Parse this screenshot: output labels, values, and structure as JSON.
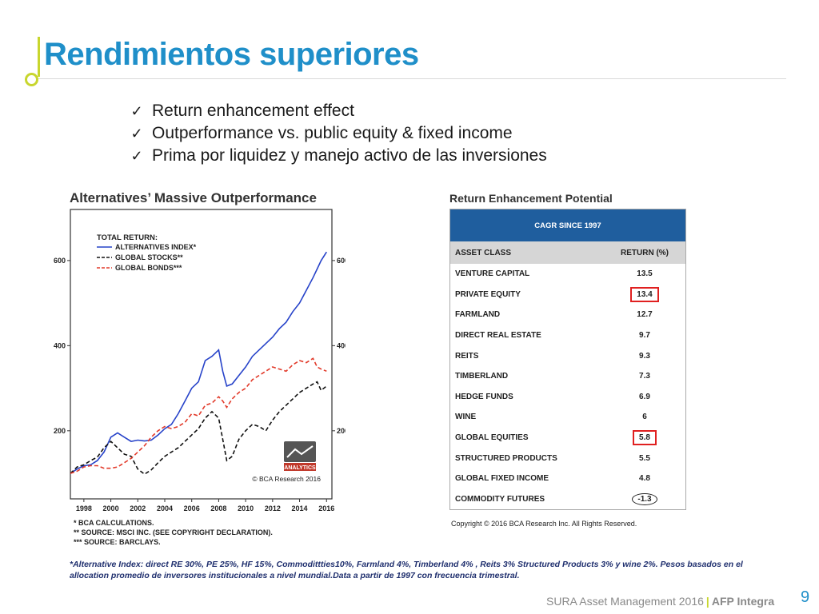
{
  "slide": {
    "title": "Rendimientos superiores",
    "bullets": [
      "Return enhancement effect",
      "Outperformance vs. public equity & fixed income",
      "Prima por liquidez y manejo activo de las inversiones"
    ],
    "note": "*Alternative Index: direct RE 30%, PE 25%, HF 15%, Commodittties10%, Farmland 4%, Timberland 4% , Reits 3%  Structured Products 3% y wine 2%. Pesos basados en el allocation promedio de inversores institucionales a nivel mundial.Data a partir de 1997 con frecuencia trimestral.",
    "footer_left": "SURA Asset Management 2016",
    "footer_sep": "|",
    "footer_brand": "AFP Integra",
    "page_number": "9"
  },
  "left_chart": {
    "title": "Alternatives’ Massive Outperformance",
    "logo_text": "ANALYTICS",
    "watermark": "© BCA Research 2016",
    "footnotes": [
      "* BCA CALCULATIONS.",
      "** SOURCE: MSCI INC. (SEE COPYRIGHT DECLARATION).",
      "*** SOURCE: BARCLAYS."
    ]
  },
  "chart_data": {
    "type": "line",
    "title": "Alternatives’ Massive Outperformance",
    "legend_title": "TOTAL RETURN:",
    "legend_position": "top-left",
    "x_ticks": [
      "1998",
      "2000",
      "2002",
      "2004",
      "2006",
      "2008",
      "2010",
      "2012",
      "2014",
      "2016"
    ],
    "y_ticks": [
      200,
      400,
      600
    ],
    "xlim": [
      1997,
      2016.4
    ],
    "ylim": [
      40,
      720
    ],
    "series": [
      {
        "name": "ALTERNATIVES INDEX*",
        "color": "#2743c9",
        "dash": "solid",
        "x": [
          1997,
          1997.5,
          1998,
          1998.5,
          1999,
          1999.5,
          2000,
          2000.5,
          2001,
          2001.5,
          2002,
          2002.5,
          2003,
          2003.5,
          2004,
          2004.5,
          2005,
          2005.5,
          2006,
          2006.5,
          2007,
          2007.5,
          2008,
          2008.3,
          2008.6,
          2009,
          2009.5,
          2010,
          2010.5,
          2011,
          2011.5,
          2012,
          2012.5,
          2013,
          2013.5,
          2014,
          2014.5,
          2015,
          2015.3,
          2015.6,
          2016
        ],
        "y": [
          100,
          110,
          118,
          120,
          130,
          150,
          185,
          195,
          185,
          175,
          178,
          176,
          178,
          190,
          205,
          215,
          240,
          270,
          300,
          315,
          365,
          375,
          390,
          340,
          305,
          310,
          330,
          350,
          375,
          390,
          405,
          420,
          440,
          455,
          480,
          500,
          530,
          560,
          580,
          600,
          620
        ]
      },
      {
        "name": "GLOBAL STOCKS**",
        "color": "#111111",
        "dash": "dashed",
        "x": [
          1997,
          1997.5,
          1998,
          1998.5,
          1999,
          1999.5,
          2000,
          2000.5,
          2001,
          2001.5,
          2002,
          2002.5,
          2003,
          2003.5,
          2004,
          2004.5,
          2005,
          2005.5,
          2006,
          2006.5,
          2007,
          2007.5,
          2008,
          2008.3,
          2008.6,
          2009,
          2009.5,
          2010,
          2010.5,
          2011,
          2011.5,
          2012,
          2012.5,
          2013,
          2013.5,
          2014,
          2014.5,
          2015,
          2015.3,
          2015.6,
          2016
        ],
        "y": [
          100,
          115,
          120,
          130,
          138,
          160,
          175,
          160,
          145,
          140,
          110,
          98,
          108,
          125,
          140,
          150,
          160,
          175,
          190,
          205,
          230,
          245,
          230,
          180,
          130,
          140,
          180,
          200,
          215,
          210,
          200,
          225,
          245,
          260,
          275,
          290,
          300,
          310,
          315,
          295,
          305
        ]
      },
      {
        "name": "GLOBAL BONDS***",
        "color": "#e23a2a",
        "dash": "dashed",
        "x": [
          1997,
          1997.5,
          1998,
          1998.5,
          1999,
          1999.5,
          2000,
          2000.5,
          2001,
          2001.5,
          2002,
          2002.5,
          2003,
          2003.5,
          2004,
          2004.5,
          2005,
          2005.5,
          2006,
          2006.5,
          2007,
          2007.5,
          2008,
          2008.3,
          2008.6,
          2009,
          2009.5,
          2010,
          2010.5,
          2011,
          2011.5,
          2012,
          2012.5,
          2013,
          2013.5,
          2014,
          2014.5,
          2015,
          2015.3,
          2015.6,
          2016
        ],
        "y": [
          100,
          105,
          115,
          118,
          118,
          112,
          112,
          115,
          125,
          135,
          150,
          165,
          185,
          200,
          210,
          205,
          210,
          220,
          240,
          235,
          260,
          265,
          280,
          270,
          255,
          275,
          290,
          300,
          320,
          330,
          340,
          350,
          345,
          340,
          355,
          365,
          360,
          370,
          350,
          345,
          340
        ]
      }
    ]
  },
  "return_table": {
    "title": "Return Enhancement Potential",
    "band": "CAGR SINCE 1997",
    "headers": [
      "ASSET CLASS",
      "RETURN (%)"
    ],
    "rows": [
      {
        "asset": "VENTURE CAPITAL",
        "ret": "13.5",
        "mark": ""
      },
      {
        "asset": "PRIVATE EQUITY",
        "ret": "13.4",
        "mark": "box"
      },
      {
        "asset": "FARMLAND",
        "ret": "12.7",
        "mark": ""
      },
      {
        "asset": "DIRECT REAL ESTATE",
        "ret": "9.7",
        "mark": ""
      },
      {
        "asset": "REITS",
        "ret": "9.3",
        "mark": ""
      },
      {
        "asset": "TIMBERLAND",
        "ret": "7.3",
        "mark": ""
      },
      {
        "asset": "HEDGE FUNDS",
        "ret": "6.9",
        "mark": ""
      },
      {
        "asset": "WINE",
        "ret": "6",
        "mark": ""
      },
      {
        "asset": "GLOBAL EQUITIES",
        "ret": "5.8",
        "mark": "box"
      },
      {
        "asset": "STRUCTURED PRODUCTS",
        "ret": "5.5",
        "mark": ""
      },
      {
        "asset": "GLOBAL FIXED INCOME",
        "ret": "4.8",
        "mark": ""
      },
      {
        "asset": "COMMODITY FUTURES",
        "ret": "-1.3",
        "mark": "oval"
      }
    ],
    "copyright": "Copyright © 2016 BCA Research Inc. All Rights Reserved."
  },
  "colors": {
    "title_blue": "#1f8fc9",
    "accent_green": "#c8d62e",
    "table_band": "#1f5e9e",
    "highlight_red": "#e02020"
  }
}
